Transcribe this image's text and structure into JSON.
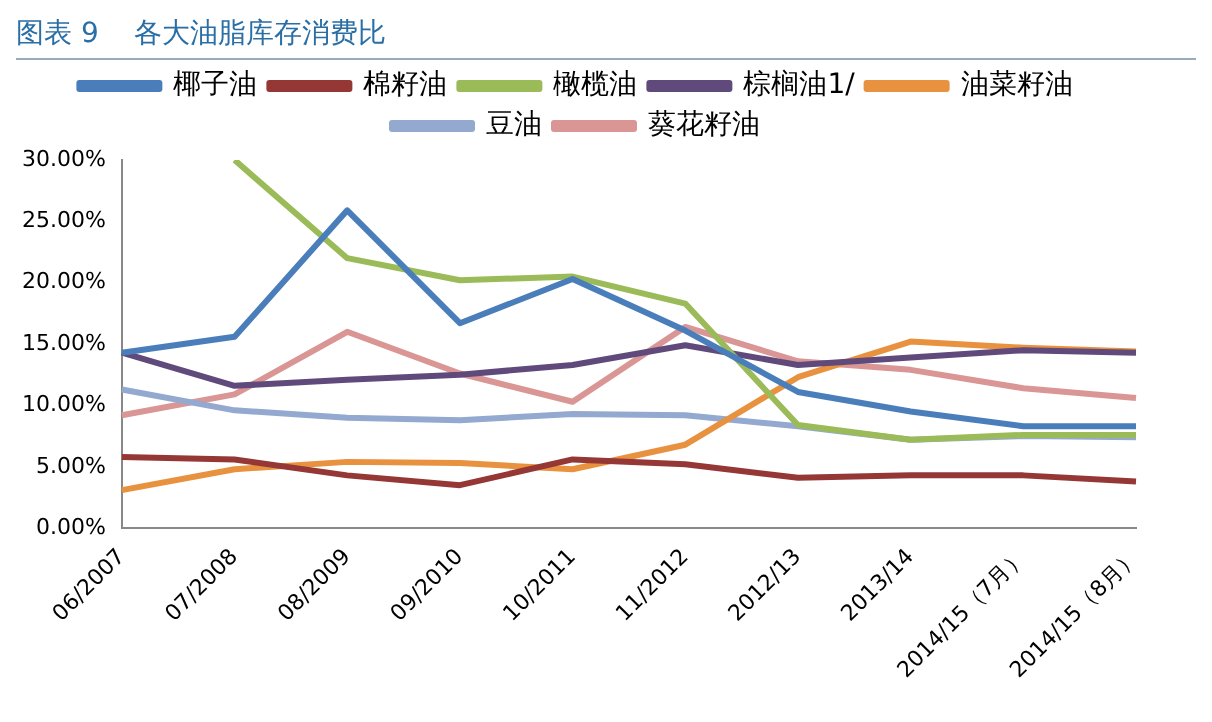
{
  "chart_data": {
    "type": "line",
    "title": "图表 9    各大油脂库存消费比",
    "categories": [
      "06/2007",
      "07/2008",
      "08/2009",
      "09/2010",
      "10/2011",
      "11/2012",
      "2012/13",
      "2013/14",
      "2014/15（7月）",
      "2014/15（8月）"
    ],
    "series": [
      {
        "name": "椰子油",
        "color": "#4a7ebb",
        "values": [
          14.3,
          15.6,
          25.9,
          16.7,
          20.3,
          16.1,
          11.1,
          9.5,
          8.3,
          8.3
        ]
      },
      {
        "name": "棉籽油",
        "color": "#953735",
        "values": [
          5.8,
          5.6,
          4.3,
          3.5,
          5.6,
          5.2,
          4.1,
          4.3,
          4.3,
          3.8
        ]
      },
      {
        "name": "橄榄油",
        "color": "#9bbb59",
        "values": [
          null,
          30,
          22,
          20.2,
          20.5,
          18.3,
          8.4,
          7.2,
          7.6,
          7.6
        ]
      },
      {
        "name": "棕榈油1/",
        "color": "#604a7b",
        "values": [
          14.3,
          11.6,
          12.1,
          12.5,
          13.3,
          14.9,
          13.3,
          13.9,
          14.5,
          14.3
        ]
      },
      {
        "name": "油菜籽油",
        "color": "#e8913e",
        "values": [
          3.1,
          4.8,
          5.4,
          5.3,
          4.8,
          6.8,
          12.3,
          15.2,
          14.7,
          14.4
        ]
      },
      {
        "name": "豆油",
        "color": "#93a9cf",
        "values": [
          11.3,
          9.6,
          9.0,
          8.8,
          9.3,
          9.2,
          8.3,
          7.2,
          7.5,
          7.4
        ]
      },
      {
        "name": "葵花籽油",
        "color": "#d99694",
        "values": [
          9.2,
          10.9,
          16.0,
          12.6,
          10.3,
          16.4,
          13.6,
          12.9,
          11.4,
          10.6
        ]
      }
    ],
    "ylim": [
      0,
      30
    ],
    "yticks": [
      {
        "value": 0,
        "label": "0.00%"
      },
      {
        "value": 5,
        "label": "5.00%"
      },
      {
        "value": 10,
        "label": "10.00%"
      },
      {
        "value": 15,
        "label": "15.00%"
      },
      {
        "value": 20,
        "label": "20.00%"
      },
      {
        "value": 25,
        "label": "25.00%"
      },
      {
        "value": 30,
        "label": "30.00%"
      }
    ],
    "grid": false,
    "legend": "top",
    "marker": "none",
    "line_style": "solid"
  }
}
